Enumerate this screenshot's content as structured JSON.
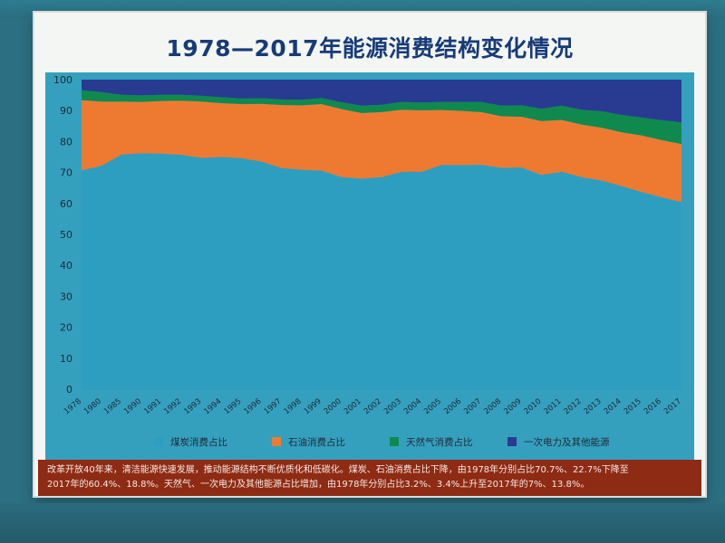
{
  "title": "1978—2017年能源消费结构变化情况",
  "caption": {
    "line1": "改革开放40年来，清洁能源快速发展，推动能源结构不断优质化和低碳化。煤炭、石油消费占比下降，由1978年分别占比70.7%、22.7%下降至",
    "line2": "2017年的60.4%、18.8%。天然气、一次电力及其他能源占比增加，由1978年分别占比3.2%、3.4%上升至2017年的7%、13.8%。"
  },
  "colors": {
    "coal": "#2e9ec0",
    "oil": "#ee7a32",
    "gas": "#10894e",
    "power": "#283b90"
  },
  "chart_data": {
    "type": "area",
    "stacked": true,
    "title": "1978—2017年能源消费结构变化情况",
    "ylim": [
      0,
      100
    ],
    "yticks": [
      0,
      10,
      20,
      30,
      40,
      50,
      60,
      70,
      80,
      90,
      100
    ],
    "x": [
      "1978",
      "1980",
      "1985",
      "1990",
      "1991",
      "1992",
      "1993",
      "1994",
      "1995",
      "1996",
      "1997",
      "1998",
      "1999",
      "2000",
      "2001",
      "2002",
      "2003",
      "2004",
      "2005",
      "2006",
      "2007",
      "2008",
      "2009",
      "2010",
      "2011",
      "2012",
      "2013",
      "2014",
      "2015",
      "2016",
      "2017"
    ],
    "xticklabels": [
      "1978",
      "1980",
      "1985",
      "1990",
      "1991",
      "1992",
      "1993",
      "1994",
      "1995",
      "1996",
      "1997",
      "1998",
      "1999",
      "2000",
      "2001",
      "2002",
      "2003",
      "2004",
      "2005",
      "2006",
      "2007",
      "2008",
      "2009",
      "2010",
      "2011",
      "2012",
      "2013",
      "2014",
      "2015",
      "2016",
      "2017"
    ],
    "legend_position": "bottom",
    "series": [
      {
        "name": "煤炭消费占比",
        "color": "#2e9ec0",
        "values": [
          70.7,
          72.2,
          75.8,
          76.2,
          76.1,
          75.7,
          74.7,
          75.0,
          74.6,
          73.5,
          71.4,
          70.9,
          70.6,
          68.5,
          68.0,
          68.5,
          70.2,
          70.2,
          72.4,
          72.4,
          72.5,
          71.5,
          71.6,
          69.2,
          70.2,
          68.5,
          67.4,
          65.6,
          63.7,
          62.0,
          60.4
        ]
      },
      {
        "name": "石油消费占比",
        "color": "#ee7a32",
        "values": [
          22.7,
          20.7,
          17.1,
          16.6,
          17.0,
          17.5,
          18.2,
          17.4,
          17.5,
          18.7,
          20.4,
          20.8,
          21.5,
          22.0,
          21.2,
          21.0,
          20.1,
          19.9,
          17.8,
          17.5,
          17.0,
          16.7,
          16.4,
          17.4,
          16.8,
          17.0,
          17.1,
          17.4,
          18.3,
          18.5,
          18.8
        ]
      },
      {
        "name": "天然气消费占比",
        "color": "#10894e",
        "values": [
          3.2,
          3.1,
          2.2,
          2.1,
          2.0,
          1.9,
          1.9,
          1.9,
          1.8,
          1.8,
          1.8,
          1.8,
          2.0,
          2.2,
          2.4,
          2.4,
          2.5,
          2.5,
          2.6,
          2.9,
          3.3,
          3.4,
          3.7,
          4.0,
          4.6,
          4.8,
          5.3,
          5.6,
          5.8,
          6.4,
          7.0
        ]
      },
      {
        "name": "一次电力及其他能源",
        "color": "#283b90",
        "values": [
          3.4,
          4.0,
          4.9,
          5.1,
          4.9,
          4.9,
          5.2,
          5.7,
          6.1,
          6.0,
          6.4,
          6.5,
          5.9,
          7.3,
          8.4,
          8.1,
          7.2,
          7.4,
          7.2,
          7.2,
          7.2,
          8.4,
          8.3,
          9.4,
          8.4,
          9.7,
          10.2,
          11.4,
          12.2,
          13.1,
          13.8
        ]
      }
    ]
  }
}
